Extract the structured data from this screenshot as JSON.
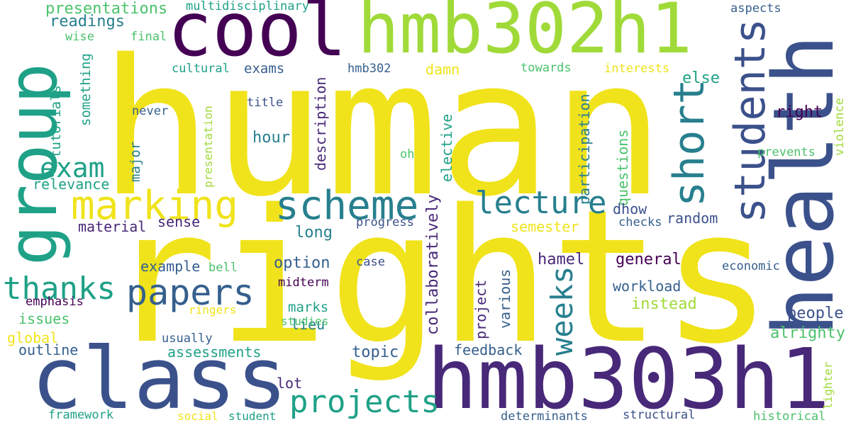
{
  "colors": {
    "yellow": "#f0e31b",
    "yellow_green": "#a0da39",
    "green": "#4bc26c",
    "teal": "#1fa187",
    "blue_teal": "#277f8e",
    "blue": "#355f8d",
    "indigo": "#3b518b",
    "purple": "#482878",
    "dark_purple": "#440154"
  },
  "words": {
    "human": "human",
    "rights": "rights",
    "cool": "cool",
    "hmb302h1": "hmb302h1",
    "health": "health",
    "group": "group",
    "class": "class",
    "hmb303h1": "hmb303h1",
    "marking": "marking",
    "scheme": "scheme",
    "students": "students",
    "short": "short",
    "papers": "papers",
    "projects": "projects",
    "thanks": "thanks",
    "lecture": "lecture",
    "weeks": "weeks",
    "exam": "exam",
    "presentations": "presentations",
    "multidisciplinary": "multidisciplinary",
    "aspects": "aspects",
    "readings": "readings",
    "wise": "wise",
    "final": "final",
    "cultural": "cultural",
    "exams": "exams",
    "hmb302": "hmb302",
    "towards": "towards",
    "interests": "interests",
    "damn": "damn",
    "else": "else",
    "something": "something",
    "tutorials": "tutorials",
    "never": "never",
    "title": "title",
    "description": "description",
    "participation": "participation",
    "elective": "elective",
    "hour": "hour",
    "right": "right",
    "questions": "questions",
    "violence": "violence",
    "prevents": "prevents",
    "major": "major",
    "presentation": "presentation",
    "oh": "oh",
    "relevance": "relevance",
    "collaboratively": "collaboratively",
    "dhow": "dhow",
    "random": "random",
    "material": "material",
    "sense": "sense",
    "progress": "progress",
    "checks": "checks",
    "semester": "semester",
    "long": "long",
    "general": "general",
    "hamel": "hamel",
    "example": "example",
    "bell": "bell",
    "option": "option",
    "case": "case",
    "economic": "economic",
    "workload": "workload",
    "emphasis": "emphasis",
    "midterm": "midterm",
    "various": "various",
    "project": "project",
    "issues": "issues",
    "ringers": "ringers",
    "marks": "marks",
    "instead": "instead",
    "people": "people",
    "global": "global",
    "lieu": "lieu",
    "studies": "studies",
    "alrighty": "alrighty",
    "usually": "usually",
    "outline": "outline",
    "assessments": "assessments",
    "feedback": "feedback",
    "topic": "topic",
    "lighter": "lighter",
    "lot": "lot",
    "framework": "framework",
    "social": "social",
    "student": "student",
    "determinants": "determinants",
    "structural": "structural",
    "historical": "historical"
  }
}
